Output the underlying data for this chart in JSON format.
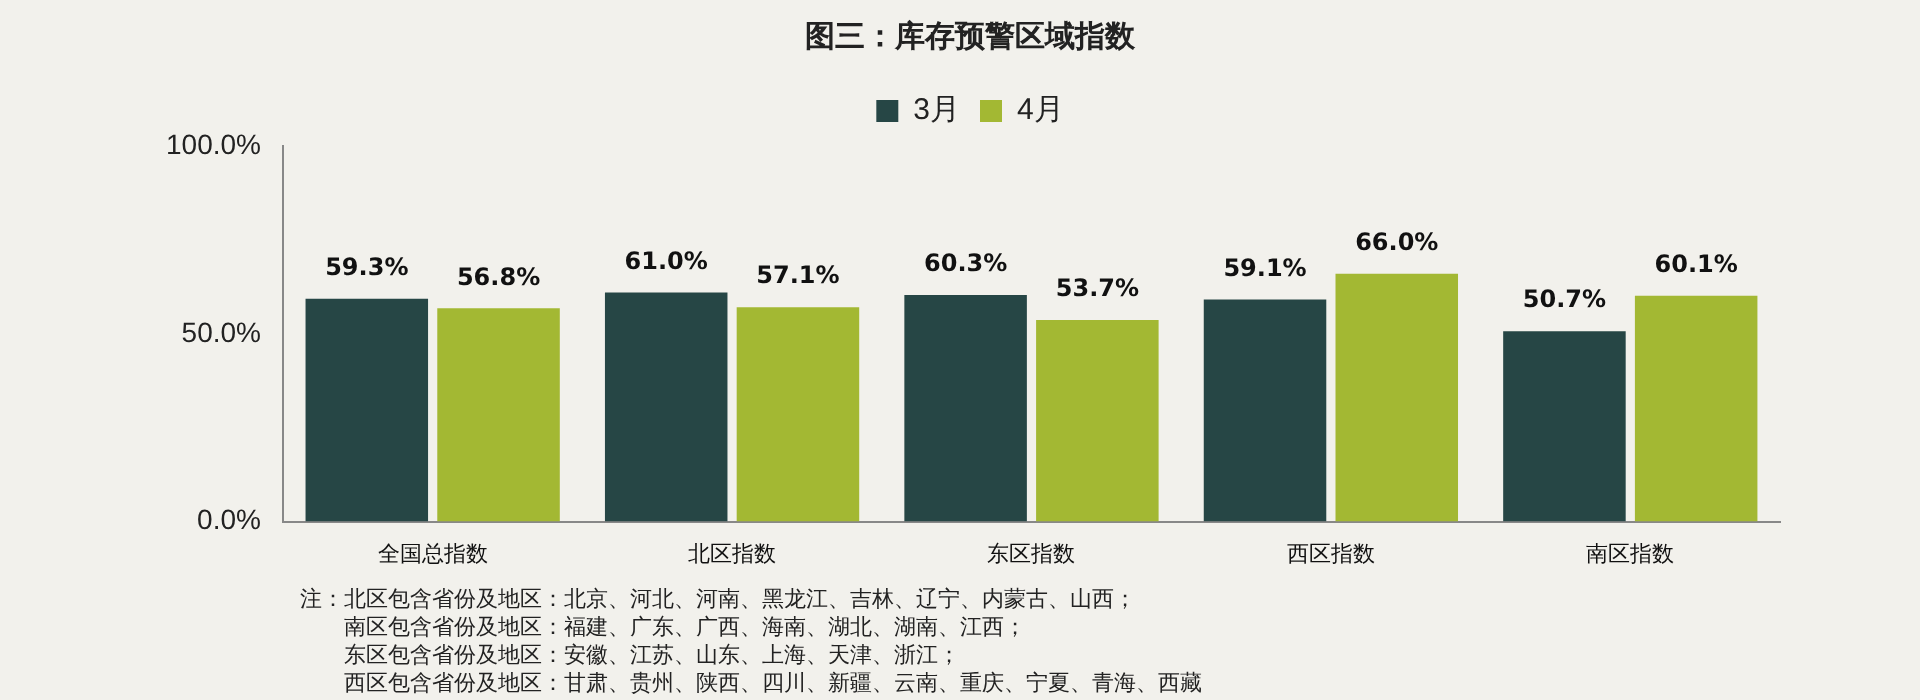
{
  "chart_data": {
    "type": "bar",
    "title": "图三：库存预警区域指数",
    "categories": [
      "全国总指数",
      "北区指数",
      "东区指数",
      "西区指数",
      "南区指数"
    ],
    "series": [
      {
        "name": "3月",
        "color": "#264645",
        "values": [
          59.3,
          61.0,
          60.3,
          59.1,
          50.7
        ],
        "value_labels": [
          "59.3%",
          "61.0%",
          "60.3%",
          "59.1%",
          "50.7%"
        ]
      },
      {
        "name": "4月",
        "color": "#a3b833",
        "values": [
          56.8,
          57.1,
          53.7,
          66.0,
          60.1
        ],
        "value_labels": [
          "56.8%",
          "57.1%",
          "53.7%",
          "66.0%",
          "60.1%"
        ]
      }
    ],
    "ylim": [
      0,
      100
    ],
    "yticks": [
      {
        "value": 0,
        "label": "0.0%"
      },
      {
        "value": 50,
        "label": "50.0%"
      },
      {
        "value": 100,
        "label": "100.0%"
      }
    ],
    "grid": false,
    "legend": "top",
    "annotations": [
      "注：北区包含省份及地区：北京、河北、河南、黑龙江、吉林、辽宁、内蒙古、山西；",
      "南区包含省份及地区：福建、广东、广西、海南、湖北、湖南、江西；",
      "东区包含省份及地区：安徽、江苏、山东、上海、天津、浙江；",
      "西区包含省份及地区：甘肃、贵州、陕西、四川、新疆、云南、重庆、宁夏、青海、西藏"
    ]
  }
}
